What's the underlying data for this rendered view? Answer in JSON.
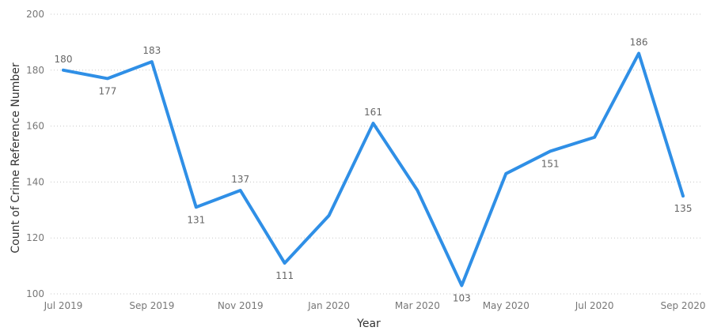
{
  "chart_data": {
    "type": "line",
    "title": "",
    "xlabel": "Year",
    "ylabel": "Count of Crime Reference Number",
    "x": [
      "Jul 2019",
      "Aug 2019",
      "Sep 2019",
      "Oct 2019",
      "Nov 2019",
      "Dec 2019",
      "Jan 2020",
      "Feb 2020",
      "Mar 2020",
      "Apr 2020",
      "May 2020",
      "Jun 2020",
      "Jul 2020",
      "Aug 2020",
      "Sep 2020"
    ],
    "x_tick_labels": [
      "Jul 2019",
      "Sep 2019",
      "Nov 2019",
      "Jan 2020",
      "Mar 2020",
      "May 2020",
      "Jul 2020",
      "Sep 2020"
    ],
    "y_tick_labels": [
      "100",
      "120",
      "140",
      "160",
      "180",
      "200"
    ],
    "series": [
      {
        "values": [
          180,
          177,
          183,
          131,
          137,
          111,
          128,
          161,
          137,
          103,
          143,
          151,
          156,
          186,
          135
        ],
        "data_labels": [
          "180",
          "177",
          "183",
          "131",
          "137",
          "111",
          null,
          "161",
          null,
          "103",
          null,
          "151",
          null,
          "186",
          "135"
        ]
      }
    ],
    "ylim": [
      100,
      200
    ],
    "grid": true,
    "line_color": "#2f8fe6"
  }
}
